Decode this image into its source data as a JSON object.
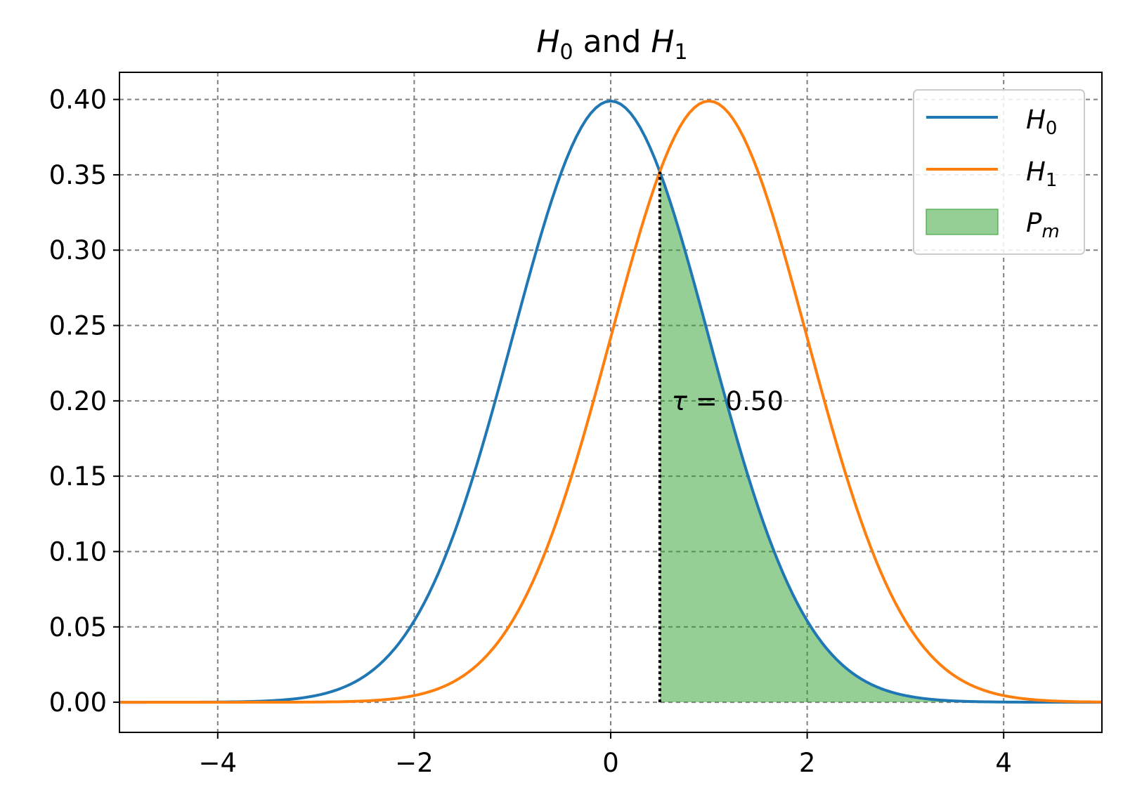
{
  "chart_data": {
    "type": "line",
    "title": {
      "main": "H",
      "sub0": "0",
      "mid": " and ",
      "main2": "H",
      "sub1": "1"
    },
    "xlabel": "",
    "ylabel": "",
    "xlim": [
      -5,
      5
    ],
    "ylim": [
      -0.02,
      0.418
    ],
    "x_ticks": [
      -4,
      -2,
      0,
      2,
      4
    ],
    "x_tick_labels": [
      "−4",
      "−2",
      "0",
      "2",
      "4"
    ],
    "y_ticks": [
      0.0,
      0.05,
      0.1,
      0.15,
      0.2,
      0.25,
      0.3,
      0.35,
      0.4
    ],
    "y_tick_labels": [
      "0.00",
      "0.05",
      "0.10",
      "0.15",
      "0.20",
      "0.25",
      "0.30",
      "0.35",
      "0.40"
    ],
    "grid": true,
    "grid_style": "dashed",
    "legend_position": "top-right",
    "series": [
      {
        "name": "H",
        "subscript": "0",
        "kind": "line",
        "color": "#1f77b4",
        "mean": 0,
        "std": 1,
        "x": [
          -5,
          -4,
          -3,
          -2.5,
          -2,
          -1.5,
          -1,
          -0.5,
          0,
          0.5,
          1,
          1.5,
          2,
          2.5,
          3,
          4,
          5
        ],
        "y": [
          0.0,
          0.0001,
          0.0044,
          0.0175,
          0.054,
          0.1295,
          0.242,
          0.352,
          0.399,
          0.352,
          0.242,
          0.1295,
          0.054,
          0.0175,
          0.0044,
          0.0001,
          0.0
        ]
      },
      {
        "name": "H",
        "subscript": "1",
        "kind": "line",
        "color": "#ff7f0e",
        "mean": 1,
        "std": 1,
        "x": [
          -5,
          -4,
          -3,
          -2,
          -1.5,
          -1,
          -0.5,
          0,
          0.5,
          1,
          1.5,
          2,
          2.5,
          3,
          3.5,
          4,
          5
        ],
        "y": [
          0.0,
          0.0,
          0.0001,
          0.0044,
          0.0175,
          0.054,
          0.1295,
          0.242,
          0.352,
          0.399,
          0.352,
          0.242,
          0.1295,
          0.054,
          0.0175,
          0.0044,
          0.0001
        ]
      },
      {
        "name": "P",
        "subscript": "m",
        "kind": "area",
        "color": "#2ca02c",
        "fill_opacity": 0.5,
        "x_from": 0.5,
        "x_to": 5,
        "under": "H0"
      }
    ],
    "threshold": {
      "x": 0.5,
      "y_top": 0.352,
      "label": "τ = 0.50",
      "label_x": 0.62,
      "label_y": 0.2
    }
  }
}
